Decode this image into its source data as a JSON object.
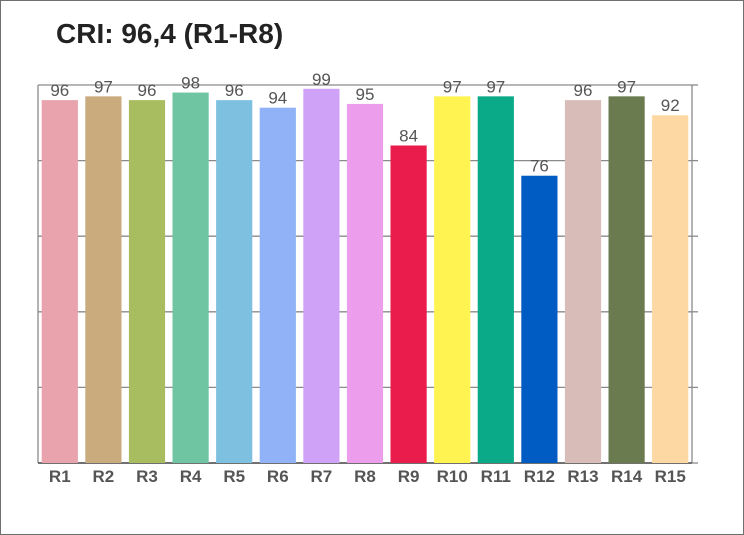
{
  "chart_data": {
    "type": "bar",
    "title": "CRI: 96,4 (R1-R8)",
    "xlabel": "",
    "ylabel": "",
    "ylim": [
      0,
      100
    ],
    "grid": true,
    "legend": "none",
    "categories": [
      "R1",
      "R2",
      "R3",
      "R4",
      "R5",
      "R6",
      "R7",
      "R8",
      "R9",
      "R10",
      "R11",
      "R12",
      "R13",
      "R14",
      "R15"
    ],
    "values": [
      96,
      97,
      96,
      98,
      96,
      94,
      99,
      95,
      84,
      97,
      97,
      76,
      96,
      97,
      92
    ],
    "colors": [
      "#e8a3ac",
      "#c9ab7e",
      "#a8bd60",
      "#6fc4a2",
      "#7ec0e0",
      "#92b2f8",
      "#cfa2f8",
      "#ec9eec",
      "#ea1c4c",
      "#fff352",
      "#0aa987",
      "#005bc2",
      "#d7bcb7",
      "#6a7c4f",
      "#fdd8a2"
    ]
  }
}
